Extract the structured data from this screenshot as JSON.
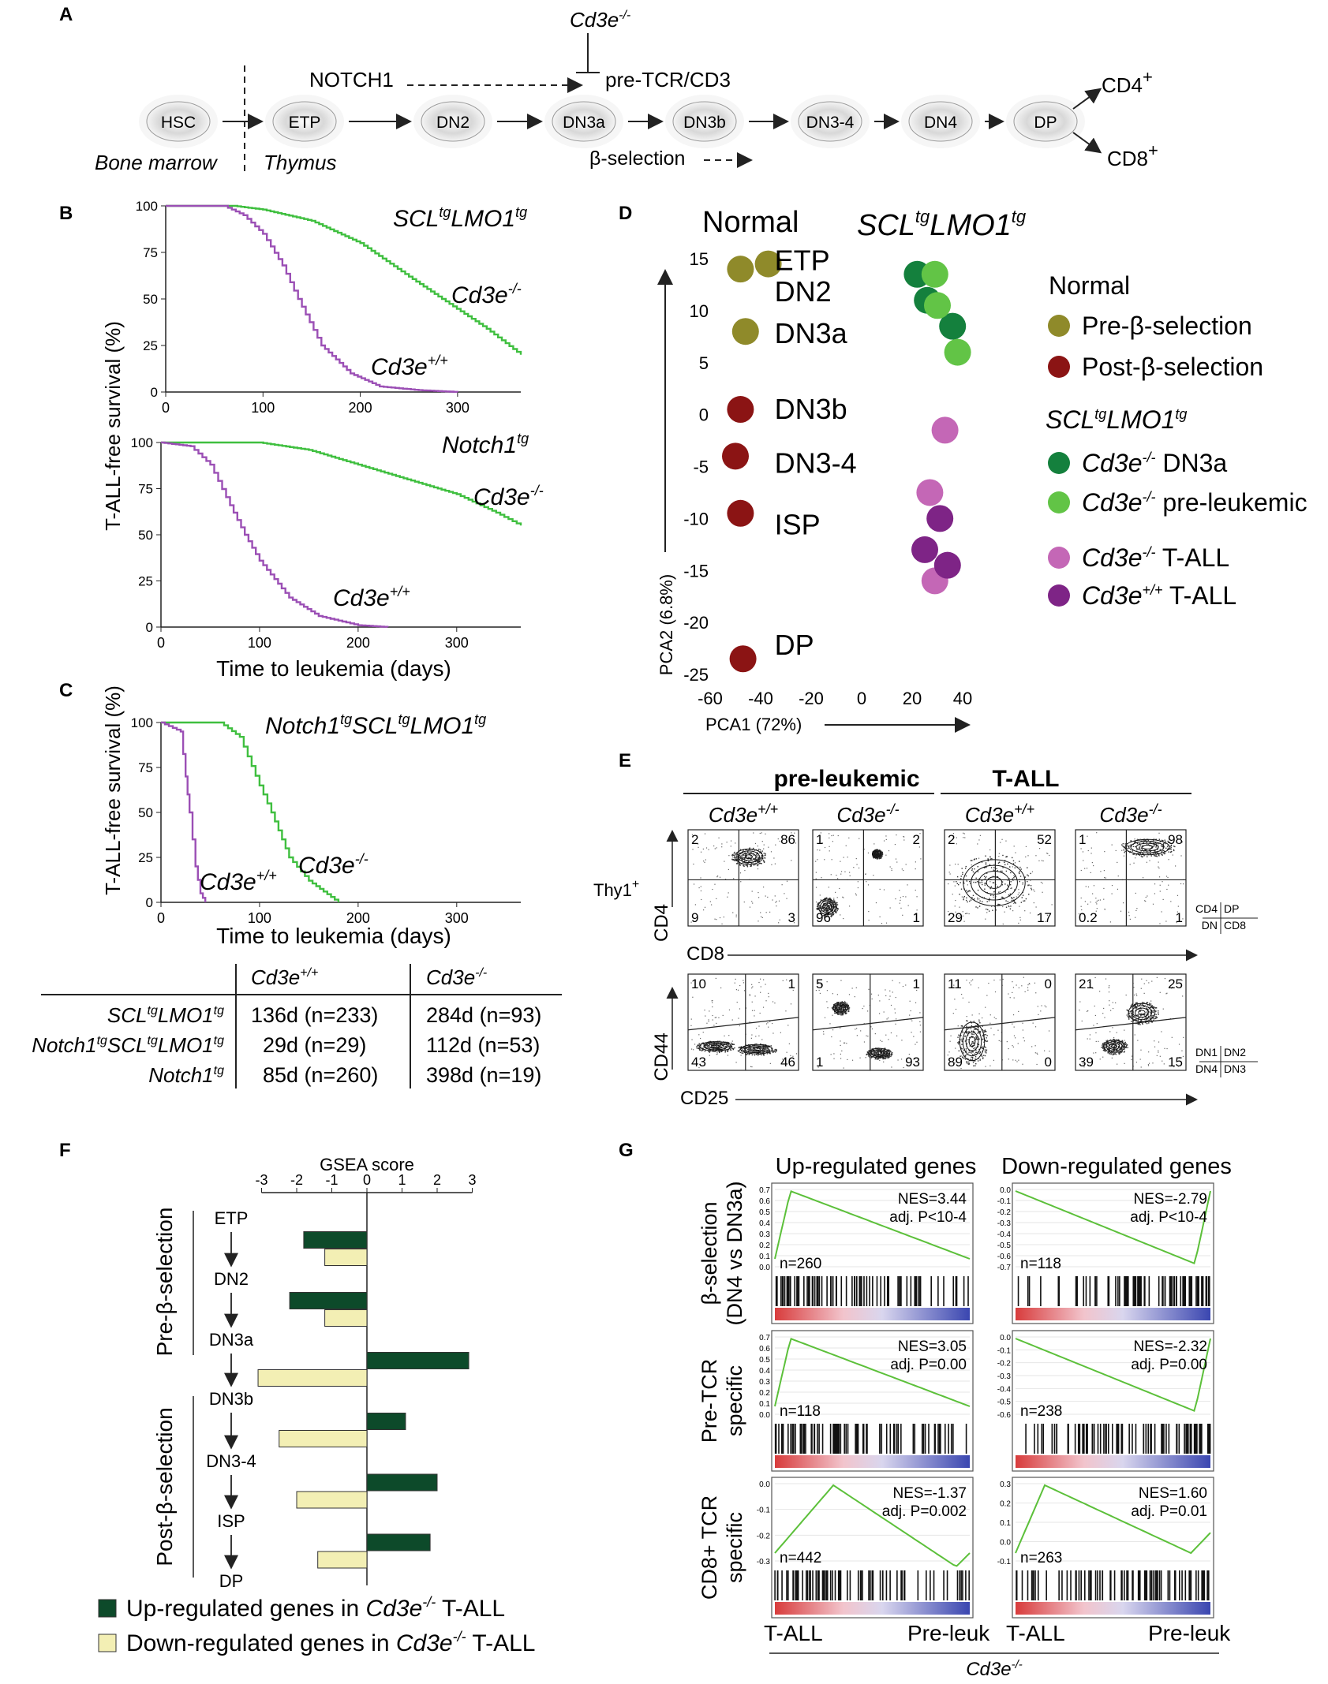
{
  "panels": {
    "A": "A",
    "B": "B",
    "C": "C",
    "D": "D",
    "E": "E",
    "F": "F",
    "G": "G"
  },
  "panel_a": {
    "stages": [
      "HSC",
      "ETP",
      "DN2",
      "DN3a",
      "DN3b",
      "DN3-4",
      "DN4",
      "DP"
    ],
    "tissue_left": "Bone marrow",
    "tissue_right": "Thymus",
    "notch": "NOTCH1",
    "knockout": "Cd3e",
    "knockout_sup": "-/-",
    "pretcr": "pre-TCR/CD3",
    "beta_selection": "β-selection",
    "cd4": "CD4",
    "cd8": "CD8",
    "plus": "+"
  },
  "chart_data": [
    {
      "type": "line",
      "id": "B-top",
      "title_pre": "SCL",
      "title_mid": "LMO1",
      "tg": "tg",
      "xlim": [
        0,
        365
      ],
      "ylim": [
        0,
        100
      ],
      "xticks": [
        "0",
        "100",
        "200",
        "300"
      ],
      "yticks": [
        "0",
        "25",
        "50",
        "75",
        "100"
      ],
      "series": [
        {
          "name": "Cd3e-/-",
          "label": "Cd3e",
          "sup": "-/-",
          "color": "#3fbf3f",
          "x": [
            0,
            70,
            100,
            150,
            200,
            250,
            284,
            330,
            365
          ],
          "y": [
            100,
            100,
            98,
            92,
            80,
            62,
            50,
            34,
            20
          ]
        },
        {
          "name": "Cd3e+/+",
          "label": "Cd3e",
          "sup": "+/+",
          "color": "#9b4fb5",
          "x": [
            0,
            60,
            80,
            100,
            120,
            136,
            160,
            190,
            220,
            260,
            300
          ],
          "y": [
            100,
            100,
            95,
            85,
            68,
            50,
            25,
            10,
            3,
            1,
            0
          ]
        }
      ]
    },
    {
      "type": "line",
      "id": "B-bottom",
      "title": "Notch1",
      "tg": "tg",
      "xlim": [
        0,
        365
      ],
      "ylim": [
        0,
        100
      ],
      "xticks": [
        "0",
        "100",
        "200",
        "300"
      ],
      "yticks": [
        "0",
        "25",
        "50",
        "75",
        "100"
      ],
      "ylabel": "T-ALL-free survival (%)",
      "xlabel": "Time to leukemia (days)",
      "series": [
        {
          "name": "Cd3e-/-",
          "label": "Cd3e",
          "sup": "-/-",
          "color": "#3fbf3f",
          "x": [
            0,
            100,
            150,
            200,
            250,
            300,
            340,
            365
          ],
          "y": [
            100,
            100,
            96,
            88,
            80,
            72,
            62,
            55
          ]
        },
        {
          "name": "Cd3e+/+",
          "label": "Cd3e",
          "sup": "+/+",
          "color": "#9b4fb5",
          "x": [
            0,
            30,
            50,
            70,
            85,
            100,
            130,
            160,
            200,
            230
          ],
          "y": [
            100,
            98,
            88,
            66,
            50,
            36,
            16,
            6,
            1,
            0
          ]
        }
      ]
    },
    {
      "type": "line",
      "id": "C",
      "title": "Notch1",
      "title2": "SCL",
      "title3": "LMO1",
      "tg": "tg",
      "xlim": [
        0,
        365
      ],
      "ylim": [
        0,
        100
      ],
      "xticks": [
        "0",
        "100",
        "200",
        "300"
      ],
      "yticks": [
        "0",
        "25",
        "50",
        "75",
        "100"
      ],
      "ylabel": "T-ALL-free survival (%)",
      "xlabel": "Time to leukemia (days)",
      "series": [
        {
          "name": "Cd3e-/-",
          "label": "Cd3e",
          "sup": "-/-",
          "color": "#3fbf3f",
          "x": [
            0,
            60,
            80,
            100,
            112,
            130,
            150,
            180
          ],
          "y": [
            100,
            100,
            92,
            65,
            50,
            25,
            12,
            0
          ]
        },
        {
          "name": "Cd3e+/+",
          "label": "Cd3e",
          "sup": "+/+",
          "color": "#9b4fb5",
          "x": [
            0,
            20,
            25,
            29,
            35,
            40,
            45
          ],
          "y": [
            100,
            95,
            70,
            50,
            20,
            5,
            0
          ]
        }
      ]
    },
    {
      "type": "scatter",
      "id": "D",
      "xlabel": "PCA1 (72%)",
      "ylabel": "PCA2 (6.8%)",
      "xlim": [
        -60,
        40
      ],
      "ylim": [
        -25,
        15
      ],
      "xticks": [
        "-60",
        "-40",
        "-20",
        "0",
        "20",
        "40"
      ],
      "yticks": [
        "15",
        "10",
        "5",
        "0",
        "-5",
        "-10",
        "-15",
        "-20",
        "-25"
      ],
      "group_normal": "Normal",
      "group_tg": "SCL",
      "group_tg2": "LMO1",
      "tg": "tg",
      "points": [
        {
          "x": -48,
          "y": 14,
          "group": "pre"
        },
        {
          "x": -37,
          "y": 14.5,
          "group": "pre"
        },
        {
          "x": -46,
          "y": 8,
          "group": "pre"
        },
        {
          "x": -48,
          "y": 0.5,
          "group": "post"
        },
        {
          "x": -50,
          "y": -4,
          "group": "post"
        },
        {
          "x": -48,
          "y": -9.5,
          "group": "post"
        },
        {
          "x": -47,
          "y": -23.5,
          "group": "post"
        },
        {
          "x": 22,
          "y": 13.5,
          "group": "dn3a"
        },
        {
          "x": 26,
          "y": 11,
          "group": "dn3a"
        },
        {
          "x": 36,
          "y": 8.5,
          "group": "dn3a"
        },
        {
          "x": 29,
          "y": 13.5,
          "group": "pre_leuk"
        },
        {
          "x": 30,
          "y": 10.5,
          "group": "pre_leuk"
        },
        {
          "x": 38,
          "y": 6,
          "group": "pre_leuk"
        },
        {
          "x": 33,
          "y": -1.5,
          "group": "ko_tall"
        },
        {
          "x": 27,
          "y": -7.5,
          "group": "ko_tall"
        },
        {
          "x": 29,
          "y": -16,
          "group": "ko_tall"
        },
        {
          "x": 31,
          "y": -10,
          "group": "wt_tall"
        },
        {
          "x": 25,
          "y": -13,
          "group": "wt_tall"
        },
        {
          "x": 34,
          "y": -14.5,
          "group": "wt_tall"
        }
      ],
      "stage_labels": [
        {
          "text": "ETP",
          "x": -37,
          "y": 14.8
        },
        {
          "text": "DN2",
          "x": -37,
          "y": 11.8
        },
        {
          "text": "DN3a",
          "x": -37,
          "y": 7.8
        },
        {
          "text": "DN3b",
          "x": -37,
          "y": 0.5
        },
        {
          "text": "DN3-4",
          "x": -37,
          "y": -4.7
        },
        {
          "text": "ISP",
          "x": -37,
          "y": -10.6
        },
        {
          "text": "DP",
          "x": -37,
          "y": -22.2
        }
      ],
      "legend": [
        {
          "title": "Normal"
        },
        {
          "label": "Pre-β-selection",
          "color": "#8f8a2a"
        },
        {
          "label": "Post-β-selection",
          "color": "#8b1414"
        },
        {
          "title": "SCLtgLMO1tg"
        },
        {
          "label": "Cd3e-/- DN3a",
          "color": "#14803d"
        },
        {
          "label": "Cd3e-/- pre-leukemic",
          "color": "#62c446"
        },
        {
          "label": "Cd3e-/- T-ALL",
          "color": "#c467b6"
        },
        {
          "label": "Cd3e+/+ T-ALL",
          "color": "#7e2486"
        }
      ]
    },
    {
      "type": "bar",
      "id": "F",
      "title": "GSEA score",
      "xlim": [
        -3,
        3
      ],
      "xticks": [
        "-3",
        "-2",
        "-1",
        "0",
        "1",
        "2",
        "3"
      ],
      "categories": [
        "ETP→DN2",
        "DN2→DN3a",
        "DN3a→DN3b",
        "DN3b→DN3-4",
        "DN3-4→ISP",
        "ISP→DP"
      ],
      "series": [
        {
          "name": "Up-regulated genes in Cd3e-/- T-ALL",
          "color": "#0d4a2a",
          "values": [
            -1.8,
            -2.2,
            2.9,
            1.1,
            2.0,
            1.8
          ]
        },
        {
          "name": "Down-regulated genes in Cd3e-/- T-ALL",
          "color": "#f3efb4",
          "values": [
            -1.2,
            -1.2,
            -3.1,
            -2.5,
            -2.0,
            -1.4
          ]
        }
      ],
      "stages": [
        "ETP",
        "DN2",
        "DN3a",
        "DN3b",
        "DN3-4",
        "ISP",
        "DP"
      ],
      "group_pre": "Pre-β-selection",
      "group_post": "Post-β-selection",
      "legend_up": "Up-regulated genes in ",
      "legend_down": "Down-regulated genes in ",
      "legend_ko": "Cd3e",
      "legend_sup": "-/-",
      "legend_tail": " T-ALL"
    }
  ],
  "table": {
    "header_wt": "Cd3e",
    "header_wt_sup": "+/+",
    "header_ko": "Cd3e",
    "header_ko_sup": "-/-",
    "rows": [
      {
        "name": "SCLtgLMO1tg",
        "wt": "136d (n=233)",
        "ko": "284d (n=93)"
      },
      {
        "name": "Notch1tgSCLtgLMO1tg",
        "wt": "29d (n=29)",
        "ko": "112d (n=53)"
      },
      {
        "name": "Notch1tg",
        "wt": "85d (n=260)",
        "ko": "398d (n=19)"
      }
    ]
  },
  "panel_e": {
    "header_pre": "pre-leukemic",
    "header_tall": "T-ALL",
    "cols": [
      {
        "g": "Cd3e",
        "s": "+/+"
      },
      {
        "g": "Cd3e",
        "s": "-/-"
      },
      {
        "g": "Cd3e",
        "s": "+/+"
      },
      {
        "g": "Cd3e",
        "s": "-/-"
      }
    ],
    "thy": "Thy1",
    "thy_sup": "+",
    "row1_y": "CD4",
    "row1_x": "CD8",
    "row2_y": "CD44",
    "row2_x": "CD25",
    "row1_quads": [
      [
        "2",
        "86",
        "9",
        "3"
      ],
      [
        "1",
        "2",
        "96",
        "1"
      ],
      [
        "2",
        "52",
        "29",
        "17"
      ],
      [
        "1",
        "98",
        "0.2",
        "1"
      ]
    ],
    "row2_quads": [
      [
        "10",
        "1",
        "43",
        "46"
      ],
      [
        "5",
        "1",
        "1",
        "93"
      ],
      [
        "11",
        "0",
        "89",
        "0"
      ],
      [
        "21",
        "25",
        "39",
        "15"
      ]
    ],
    "key1": [
      "CD4",
      "DP",
      "DN",
      "CD8"
    ],
    "key2": [
      "DN1",
      "DN2",
      "DN4",
      "DN3"
    ]
  },
  "panel_g": {
    "col1": "Up-regulated genes",
    "col2": "Down-regulated genes",
    "rows": [
      {
        "label1": "β-selection",
        "label2": "(DN4 vs DN3a)"
      },
      {
        "label1": "Pre-TCR",
        "label2": "specific"
      },
      {
        "label1": "CD8+ TCR",
        "label2": "specific"
      }
    ],
    "cells": [
      {
        "nes": "NES=3.44",
        "p": "adj. P<10-4",
        "n": "n=260",
        "yt": [
          "0.7",
          "0.6",
          "0.5",
          "0.4",
          "0.3",
          "0.2",
          "0.1",
          "0.0"
        ]
      },
      {
        "nes": "NES=-2.79",
        "p": "adj. P<10-4",
        "n": "n=118",
        "yt": [
          "0.0",
          "-0.1",
          "-0.2",
          "-0.3",
          "-0.4",
          "-0.5",
          "-0.6",
          "-0.7"
        ]
      },
      {
        "nes": "NES=3.05",
        "p": "adj. P=0.00",
        "n": "n=118",
        "yt": [
          "0.7",
          "0.6",
          "0.5",
          "0.4",
          "0.3",
          "0.2",
          "0.1",
          "0.0"
        ]
      },
      {
        "nes": "NES=-2.32",
        "p": "adj. P=0.00",
        "n": "n=238",
        "yt": [
          "0.0",
          "-0.1",
          "-0.2",
          "-0.3",
          "-0.4",
          "-0.5",
          "-0.6"
        ]
      },
      {
        "nes": "NES=-1.37",
        "p": "adj. P=0.002",
        "n": "n=442",
        "yt": [
          "0.0",
          "-0.1",
          "-0.2",
          "-0.3"
        ]
      },
      {
        "nes": "NES=1.60",
        "p": "adj. P=0.01",
        "n": "n=263",
        "yt": [
          "0.3",
          "0.2",
          "0.1",
          "0.0",
          "-0.1"
        ]
      }
    ],
    "x_left": "T-ALL",
    "x_right": "Pre-leuk",
    "bottom": "Cd3e",
    "bottom_sup": "-/-"
  },
  "colors": {
    "green": "#3fbf3f",
    "purple": "#9b4fb5",
    "dark_green": "#0d4a2a",
    "pale_yellow": "#f3efb4"
  }
}
